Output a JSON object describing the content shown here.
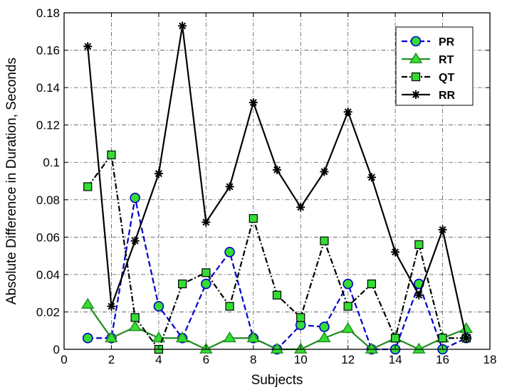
{
  "chart_data": {
    "type": "line",
    "xlabel": "Subjects",
    "ylabel": "Absolute Difference in Duration, Seconds",
    "xlim": [
      0,
      18
    ],
    "ylim": [
      0,
      0.18
    ],
    "xticks": [
      0,
      2,
      4,
      6,
      8,
      10,
      12,
      14,
      16,
      18
    ],
    "xtick_labels": [
      "0",
      "2",
      "4",
      "6",
      "8",
      "10",
      "12",
      "14",
      "16",
      "18"
    ],
    "yticks": [
      0,
      0.02,
      0.04,
      0.06,
      0.08,
      0.1,
      0.12,
      0.14,
      0.16,
      0.18
    ],
    "ytick_labels": [
      "0",
      "0.02",
      "0.04",
      "0.06",
      "0.08",
      "0.1",
      "0.12",
      "0.14",
      "0.16",
      "0.18"
    ],
    "grid": true,
    "legend_position": "top-right",
    "x": [
      1,
      2,
      3,
      4,
      5,
      6,
      7,
      8,
      9,
      10,
      11,
      12,
      13,
      14,
      15,
      16,
      17
    ],
    "series": [
      {
        "name": "PR",
        "values": [
          0.006,
          0.006,
          0.081,
          0.023,
          0.006,
          0.035,
          0.052,
          0.006,
          0.0,
          0.013,
          0.012,
          0.035,
          0.0,
          0.0,
          0.035,
          0.0,
          0.006
        ],
        "color": "#0000cc",
        "marker": "circle",
        "marker_fill": "#33dd33",
        "line_style": "dashed"
      },
      {
        "name": "RT",
        "values": [
          0.024,
          0.006,
          0.012,
          0.006,
          0.006,
          0.0,
          0.006,
          0.006,
          0.0,
          0.0,
          0.006,
          0.011,
          0.0,
          0.006,
          0.0,
          0.006,
          0.011
        ],
        "color": "#228b22",
        "marker": "triangle",
        "marker_fill": "#33dd33",
        "line_style": "solid"
      },
      {
        "name": "QT",
        "values": [
          0.087,
          0.104,
          0.017,
          0.0,
          0.035,
          0.041,
          0.023,
          0.07,
          0.029,
          0.017,
          0.058,
          0.023,
          0.035,
          0.006,
          0.056,
          0.006,
          0.006
        ],
        "color": "#000000",
        "marker": "square",
        "marker_fill": "#33dd33",
        "line_style": "dashdot"
      },
      {
        "name": "RR",
        "values": [
          0.162,
          0.023,
          0.058,
          0.094,
          0.173,
          0.068,
          0.087,
          0.132,
          0.096,
          0.076,
          0.095,
          0.127,
          0.092,
          0.052,
          0.029,
          0.064,
          0.006
        ],
        "color": "#000000",
        "marker": "star",
        "marker_fill": "#000000",
        "line_style": "solid"
      }
    ]
  }
}
